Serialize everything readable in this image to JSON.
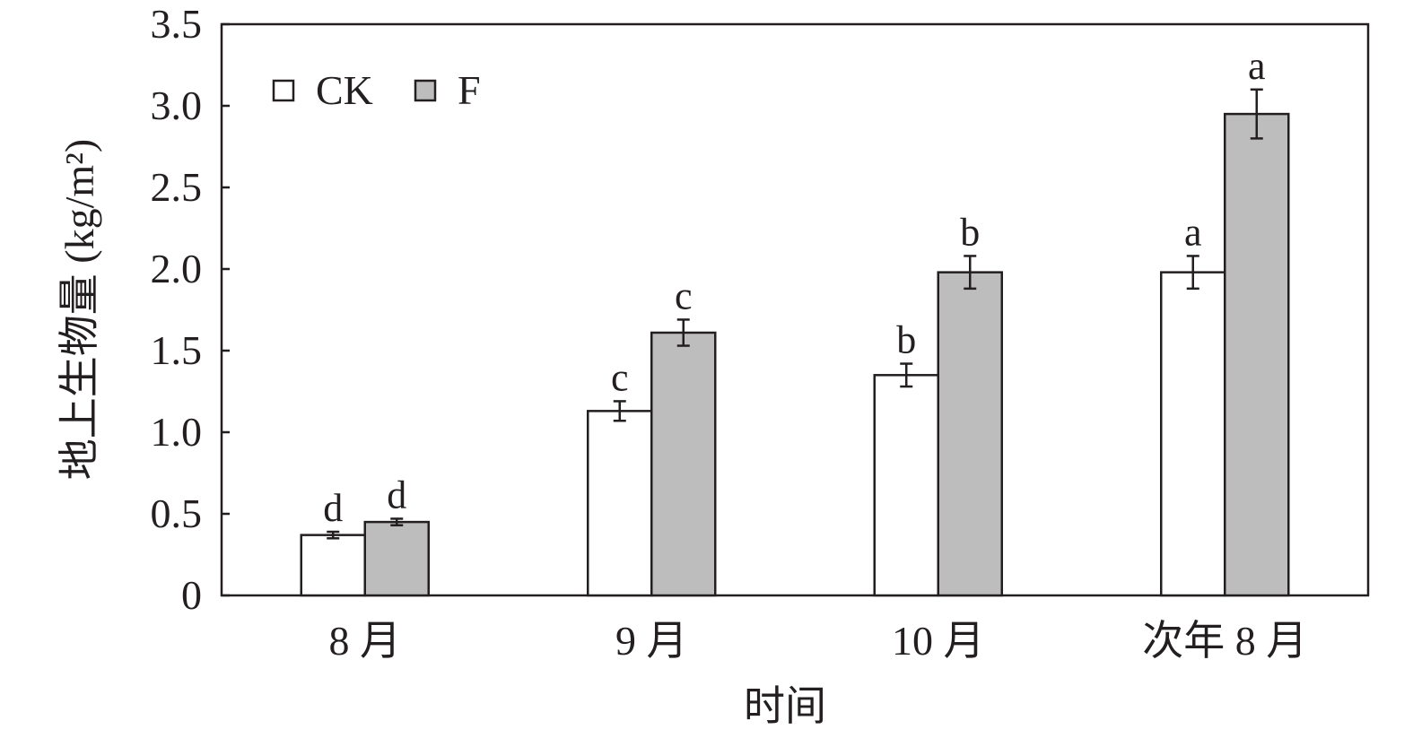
{
  "chart_data": {
    "type": "bar",
    "xlabel": "时间",
    "ylabel": "地上生物量 (kg/m²)",
    "ylim": [
      0,
      3.5
    ],
    "yticks": [
      "0",
      "0.5",
      "1.0",
      "1.5",
      "2.0",
      "2.5",
      "3.0",
      "3.5"
    ],
    "categories": [
      "8 月",
      "9 月",
      "10 月",
      "次年 8 月"
    ],
    "series": [
      {
        "name": "CK",
        "color": "#ffffff",
        "values": [
          0.37,
          1.13,
          1.35,
          1.98
        ],
        "errors": [
          0.02,
          0.06,
          0.07,
          0.1
        ],
        "labels": [
          "d",
          "c",
          "b",
          "a"
        ]
      },
      {
        "name": "F",
        "color": "#bdbdbd",
        "values": [
          0.45,
          1.61,
          1.98,
          2.95
        ],
        "errors": [
          0.02,
          0.08,
          0.1,
          0.15
        ],
        "labels": [
          "d",
          "c",
          "b",
          "a"
        ]
      }
    ],
    "grid": false,
    "legend": "top-left"
  }
}
